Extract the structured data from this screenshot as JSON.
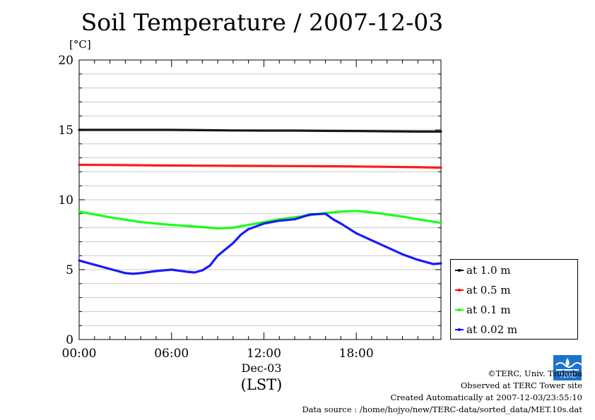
{
  "chart_data": {
    "type": "line",
    "title": "Soil Temperature / 2007-12-03",
    "ylabel": "[°C]",
    "ylim": [
      0,
      20
    ],
    "yticks": [
      "0",
      "5",
      "10",
      "15",
      "20"
    ],
    "xlim": [
      0,
      23.5
    ],
    "xticks": [
      {
        "x": 0,
        "label": "00:00"
      },
      {
        "x": 6,
        "label": "06:00"
      },
      {
        "x": 12,
        "label": "12:00"
      },
      {
        "x": 18,
        "label": "18:00"
      }
    ],
    "xdate": "Dec-03",
    "xunit": "(LST)",
    "grid": true,
    "legend_position": "right",
    "series": [
      {
        "name": "at 1.0 m",
        "color": "#000000",
        "x": [
          0,
          2,
          4,
          6,
          8,
          10,
          12,
          14,
          16,
          18,
          20,
          22,
          23.5
        ],
        "y": [
          15.0,
          15.0,
          15.0,
          15.0,
          14.98,
          14.96,
          14.95,
          14.95,
          14.93,
          14.92,
          14.9,
          14.88,
          14.88
        ]
      },
      {
        "name": "at 0.5 m",
        "color": "#ff0000",
        "x": [
          0,
          2,
          4,
          6,
          8,
          10,
          12,
          14,
          16,
          18,
          20,
          22,
          23.5
        ],
        "y": [
          12.5,
          12.49,
          12.47,
          12.45,
          12.44,
          12.43,
          12.42,
          12.41,
          12.4,
          12.38,
          12.36,
          12.33,
          12.3
        ]
      },
      {
        "name": "at 0.1 m",
        "color": "#00ff00",
        "x": [
          0,
          2,
          4,
          6,
          8,
          9,
          10,
          11,
          12,
          13,
          14,
          15,
          16,
          17,
          18,
          19,
          20,
          21,
          22,
          23.5
        ],
        "y": [
          9.15,
          8.75,
          8.4,
          8.2,
          8.05,
          7.95,
          8.0,
          8.2,
          8.4,
          8.6,
          8.75,
          8.9,
          9.05,
          9.15,
          9.2,
          9.1,
          8.95,
          8.8,
          8.6,
          8.35
        ]
      },
      {
        "name": "at 0.02 m",
        "color": "#0000ff",
        "x": [
          0,
          1,
          2,
          3,
          3.5,
          4,
          5,
          6,
          7,
          7.5,
          8,
          8.5,
          9,
          10,
          10.5,
          11,
          12,
          13,
          14,
          15,
          16,
          16.5,
          17,
          18,
          19,
          20,
          21,
          22,
          23,
          23.5
        ],
        "y": [
          5.65,
          5.35,
          5.05,
          4.75,
          4.7,
          4.75,
          4.9,
          5.0,
          4.85,
          4.8,
          4.95,
          5.3,
          6.0,
          6.9,
          7.5,
          7.9,
          8.3,
          8.5,
          8.6,
          8.95,
          9.0,
          8.6,
          8.3,
          7.6,
          7.1,
          6.6,
          6.1,
          5.7,
          5.4,
          5.45
        ]
      }
    ]
  },
  "legend_title": "",
  "credits": [
    "©TERC, Univ. Tsukuba",
    "Observed at TERC Tower site",
    "Created Automatically at 2007-12-03/23:55:10",
    "Data source : /home/hojyo/new/TERC-data/sorted_data/MET.10s.dat"
  ],
  "logo_text": "TERC"
}
